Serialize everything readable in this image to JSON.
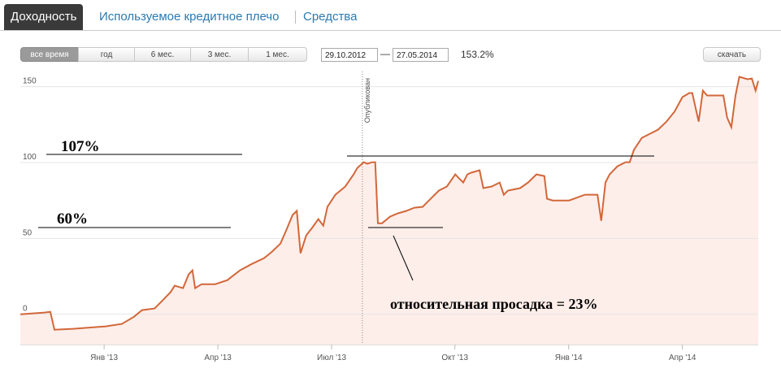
{
  "tabs": [
    "Доходность",
    "Используемое кредитное плечо",
    "Средства"
  ],
  "periods": [
    "все время",
    "год",
    "6 мес.",
    "3 мес.",
    "1 мес."
  ],
  "date_from": "29.10.2012",
  "date_separator": "—",
  "date_to": "27.05.2014",
  "total_return": "153.2%",
  "download": "скачать",
  "chart_data": {
    "type": "line",
    "color": "#d2673a",
    "fill": "#fdeee9",
    "grid": true,
    "x": [
      0,
      0.64,
      0.79,
      0.9,
      1.39,
      2.25,
      2.68,
      3.0,
      3.21,
      3.54,
      3.75,
      3.96,
      4.07,
      4.29,
      4.44,
      4.54,
      4.61,
      4.78,
      5.14,
      5.46,
      5.79,
      6.11,
      6.43,
      6.64,
      6.86,
      7.01,
      7.18,
      7.29,
      7.39,
      7.54,
      7.71,
      7.86,
      7.99,
      8.1,
      8.31,
      8.57,
      8.79,
      8.89,
      9.06,
      9.15,
      9.28,
      9.36,
      9.43,
      9.54,
      9.75,
      9.96,
      10.18,
      10.39,
      10.61,
      10.82,
      11.04,
      11.25,
      11.47,
      11.57,
      11.68,
      11.79,
      11.89,
      12.11,
      12.21,
      12.43,
      12.64,
      12.75,
      12.86,
      13.18,
      13.39,
      13.61,
      13.82,
      13.89,
      14.04,
      14.47,
      14.89,
      15.22,
      15.32,
      15.43,
      15.54,
      15.75,
      15.96,
      16.07,
      16.18,
      16.39,
      16.61,
      16.82,
      17.04,
      17.25,
      17.46,
      17.64,
      17.72,
      17.89,
      18.0,
      18.11,
      18.54,
      18.64,
      18.75,
      18.86,
      18.96,
      19.18,
      19.29,
      19.39,
      19.46
    ],
    "values": [
      0,
      1.1,
      1.6,
      -10.2,
      -9.6,
      -8.0,
      -6.4,
      -1.6,
      2.7,
      3.8,
      9.1,
      14.5,
      18.8,
      17.2,
      26.3,
      28.9,
      17.2,
      19.8,
      19.8,
      22.5,
      28.9,
      33.2,
      37.0,
      41.3,
      46.6,
      55.2,
      65.4,
      68.1,
      40.2,
      52.0,
      57.4,
      62.7,
      58.4,
      70.8,
      78.8,
      84.2,
      92.2,
      96.5,
      100.2,
      99.2,
      100.2,
      100.2,
      60.0,
      60.0,
      64.3,
      66.5,
      68.1,
      70.2,
      70.8,
      76.1,
      81.5,
      84.2,
      92.2,
      89.5,
      86.8,
      92.2,
      93.3,
      94.9,
      83.1,
      84.2,
      86.8,
      78.8,
      81.5,
      83.1,
      86.8,
      92.2,
      91.1,
      76.1,
      75.0,
      75.0,
      78.8,
      78.8,
      61.6,
      86.8,
      92.2,
      97.6,
      100.2,
      100.2,
      108.3,
      116.3,
      119.0,
      121.7,
      127.0,
      133.5,
      143.1,
      145.8,
      145.8,
      127.0,
      147.4,
      144.2,
      144.2,
      129.7,
      123.3,
      144.2,
      156.5,
      154.9,
      155.4,
      147.4,
      153.8
    ],
    "xlim": [
      0,
      19.46
    ],
    "xticks": [
      {
        "value": 2.21,
        "label": "Янв '13"
      },
      {
        "value": 5.21,
        "label": "Апр '13"
      },
      {
        "value": 8.21,
        "label": "Июл '13"
      },
      {
        "value": 11.46,
        "label": "Окт '13"
      },
      {
        "value": 14.46,
        "label": "Янв '14"
      },
      {
        "value": 17.46,
        "label": "Апр '14"
      }
    ],
    "ylim": [
      -20,
      160
    ],
    "yticks": [
      0,
      50,
      100,
      150
    ],
    "published_label": "Опубликован",
    "published_x": 9.02,
    "annotations": [
      "107%",
      "60%",
      "относительная просадка = 23%"
    ]
  }
}
